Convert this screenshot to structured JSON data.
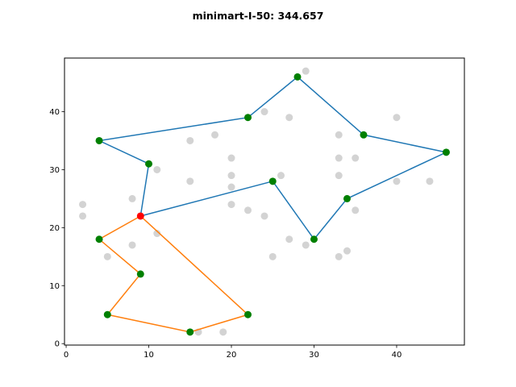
{
  "chart_data": {
    "type": "scatter",
    "title": "minimart-I-50: 344.657",
    "xlabel": "",
    "ylabel": "",
    "xlim": [
      -0.2,
      48.2
    ],
    "ylim": [
      -0.25,
      49.25
    ],
    "xticks": [
      0,
      10,
      20,
      30,
      40
    ],
    "yticks": [
      0,
      10,
      20,
      30,
      40
    ],
    "grid": false,
    "colors": {
      "route_1": "#1f77b4",
      "route_2": "#ff7f0e",
      "depot": "#ff0000",
      "visited": "#008000",
      "unvisited": "#d3d3d3"
    },
    "depot": [
      9,
      22
    ],
    "unvisited_points": [
      [
        29,
        47
      ],
      [
        24,
        40
      ],
      [
        27,
        39
      ],
      [
        40,
        39
      ],
      [
        18,
        36
      ],
      [
        15,
        35
      ],
      [
        33,
        36
      ],
      [
        20,
        32
      ],
      [
        33,
        32
      ],
      [
        35,
        32
      ],
      [
        11,
        30
      ],
      [
        20,
        29
      ],
      [
        26,
        29
      ],
      [
        33,
        29
      ],
      [
        15,
        28
      ],
      [
        40,
        28
      ],
      [
        44,
        28
      ],
      [
        20,
        27
      ],
      [
        8,
        25
      ],
      [
        2,
        24
      ],
      [
        20,
        24
      ],
      [
        22,
        23
      ],
      [
        35,
        23
      ],
      [
        2,
        22
      ],
      [
        24,
        22
      ],
      [
        11,
        19
      ],
      [
        27,
        18
      ],
      [
        8,
        17
      ],
      [
        29,
        17
      ],
      [
        34,
        16
      ],
      [
        5,
        15
      ],
      [
        25,
        15
      ],
      [
        33,
        15
      ],
      [
        16,
        2
      ],
      [
        19,
        2
      ]
    ],
    "series": [
      {
        "points": [
          [
            9,
            22
          ],
          [
            10,
            31
          ],
          [
            4,
            35
          ],
          [
            22,
            39
          ],
          [
            28,
            46
          ],
          [
            36,
            36
          ],
          [
            46,
            33
          ],
          [
            34,
            25
          ],
          [
            30,
            18
          ],
          [
            25,
            28
          ],
          [
            9,
            22
          ]
        ]
      },
      {
        "points": [
          [
            9,
            22
          ],
          [
            4,
            18
          ],
          [
            9,
            12
          ],
          [
            5,
            5
          ],
          [
            15,
            2
          ],
          [
            22,
            5
          ],
          [
            9,
            22
          ]
        ]
      }
    ]
  }
}
